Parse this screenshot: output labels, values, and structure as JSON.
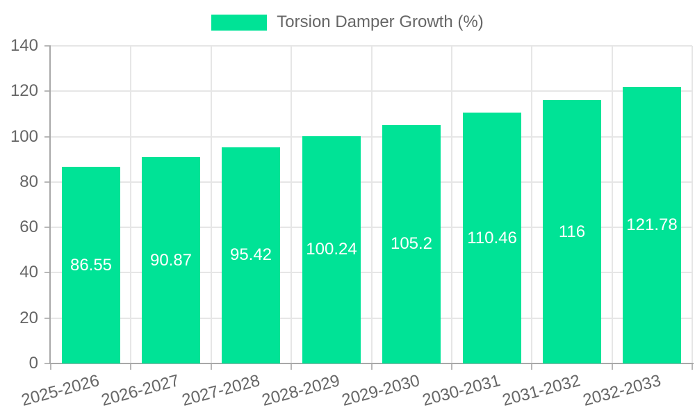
{
  "legend": {
    "label": "Torsion Damper Growth (%)"
  },
  "chart_data": {
    "type": "bar",
    "title": "Torsion Damper Growth (%)",
    "categories": [
      "2025-2026",
      "2026-2027",
      "2027-2028",
      "2028-2029",
      "2029-2030",
      "2030-2031",
      "2031-2032",
      "2032-2033"
    ],
    "series": [
      {
        "name": "Torsion Damper Growth (%)",
        "values": [
          86.55,
          90.87,
          95.42,
          100.24,
          105.2,
          110.46,
          116,
          121.78
        ]
      }
    ],
    "value_labels": [
      "86.55",
      "90.87",
      "95.42",
      "100.24",
      "105.2",
      "110.46",
      "116",
      "121.78"
    ],
    "xlabel": "",
    "ylabel": "",
    "ylim": [
      0,
      140
    ],
    "y_ticks": [
      0,
      20,
      40,
      60,
      80,
      100,
      120,
      140
    ],
    "grid": true,
    "legend_position": "top",
    "x_label_rotation": -15,
    "colors": {
      "bar": "#00E396",
      "value_label": "#ffffff",
      "axis_text": "#666666",
      "grid_line": "#e6e6e6",
      "axis_line": "#a8a8a8",
      "tick_mark": "#b8b8b8"
    }
  }
}
